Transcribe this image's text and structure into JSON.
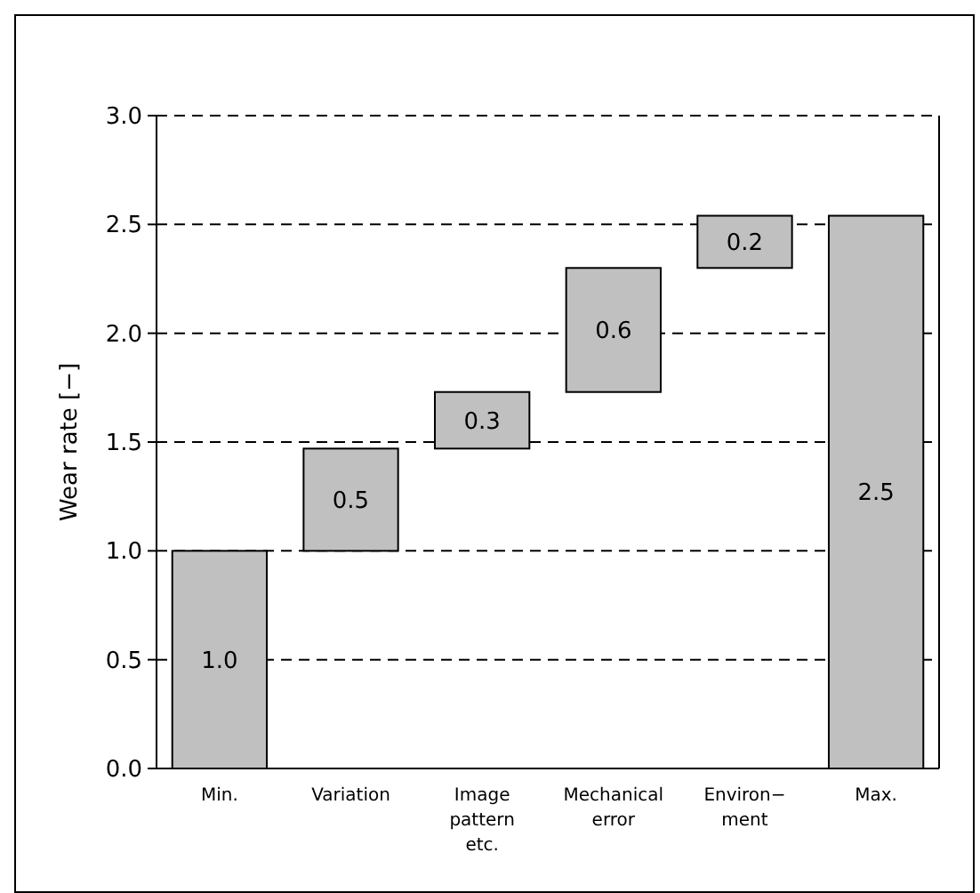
{
  "chart_data": {
    "type": "bar",
    "ylabel": "Wear rate [−]",
    "categories": [
      "Min.",
      "Variation",
      "Image\npattern\netc.",
      "Mechanical\nerror",
      "Environ−\nment",
      "Max."
    ],
    "values": [
      1.0,
      0.47,
      0.26,
      0.57,
      0.24,
      2.54
    ],
    "base": [
      0,
      1.0,
      1.47,
      1.73,
      2.3,
      0
    ],
    "value_labels": [
      "1.0",
      "0.5",
      "0.3",
      "0.6",
      "0.2",
      "2.5"
    ],
    "color": "#c0c0c0",
    "ylim": [
      0,
      3.0
    ],
    "yticks": [
      {
        "value": 0,
        "label": "0.0"
      },
      {
        "value": 0.5,
        "label": "0.5"
      },
      {
        "value": 1,
        "label": "1.0"
      },
      {
        "value": 1.5,
        "label": "1.5"
      },
      {
        "value": 2,
        "label": "2.0"
      },
      {
        "value": 2.5,
        "label": "2.5"
      },
      {
        "value": 3,
        "label": "3.0"
      }
    ],
    "grid": "y"
  }
}
